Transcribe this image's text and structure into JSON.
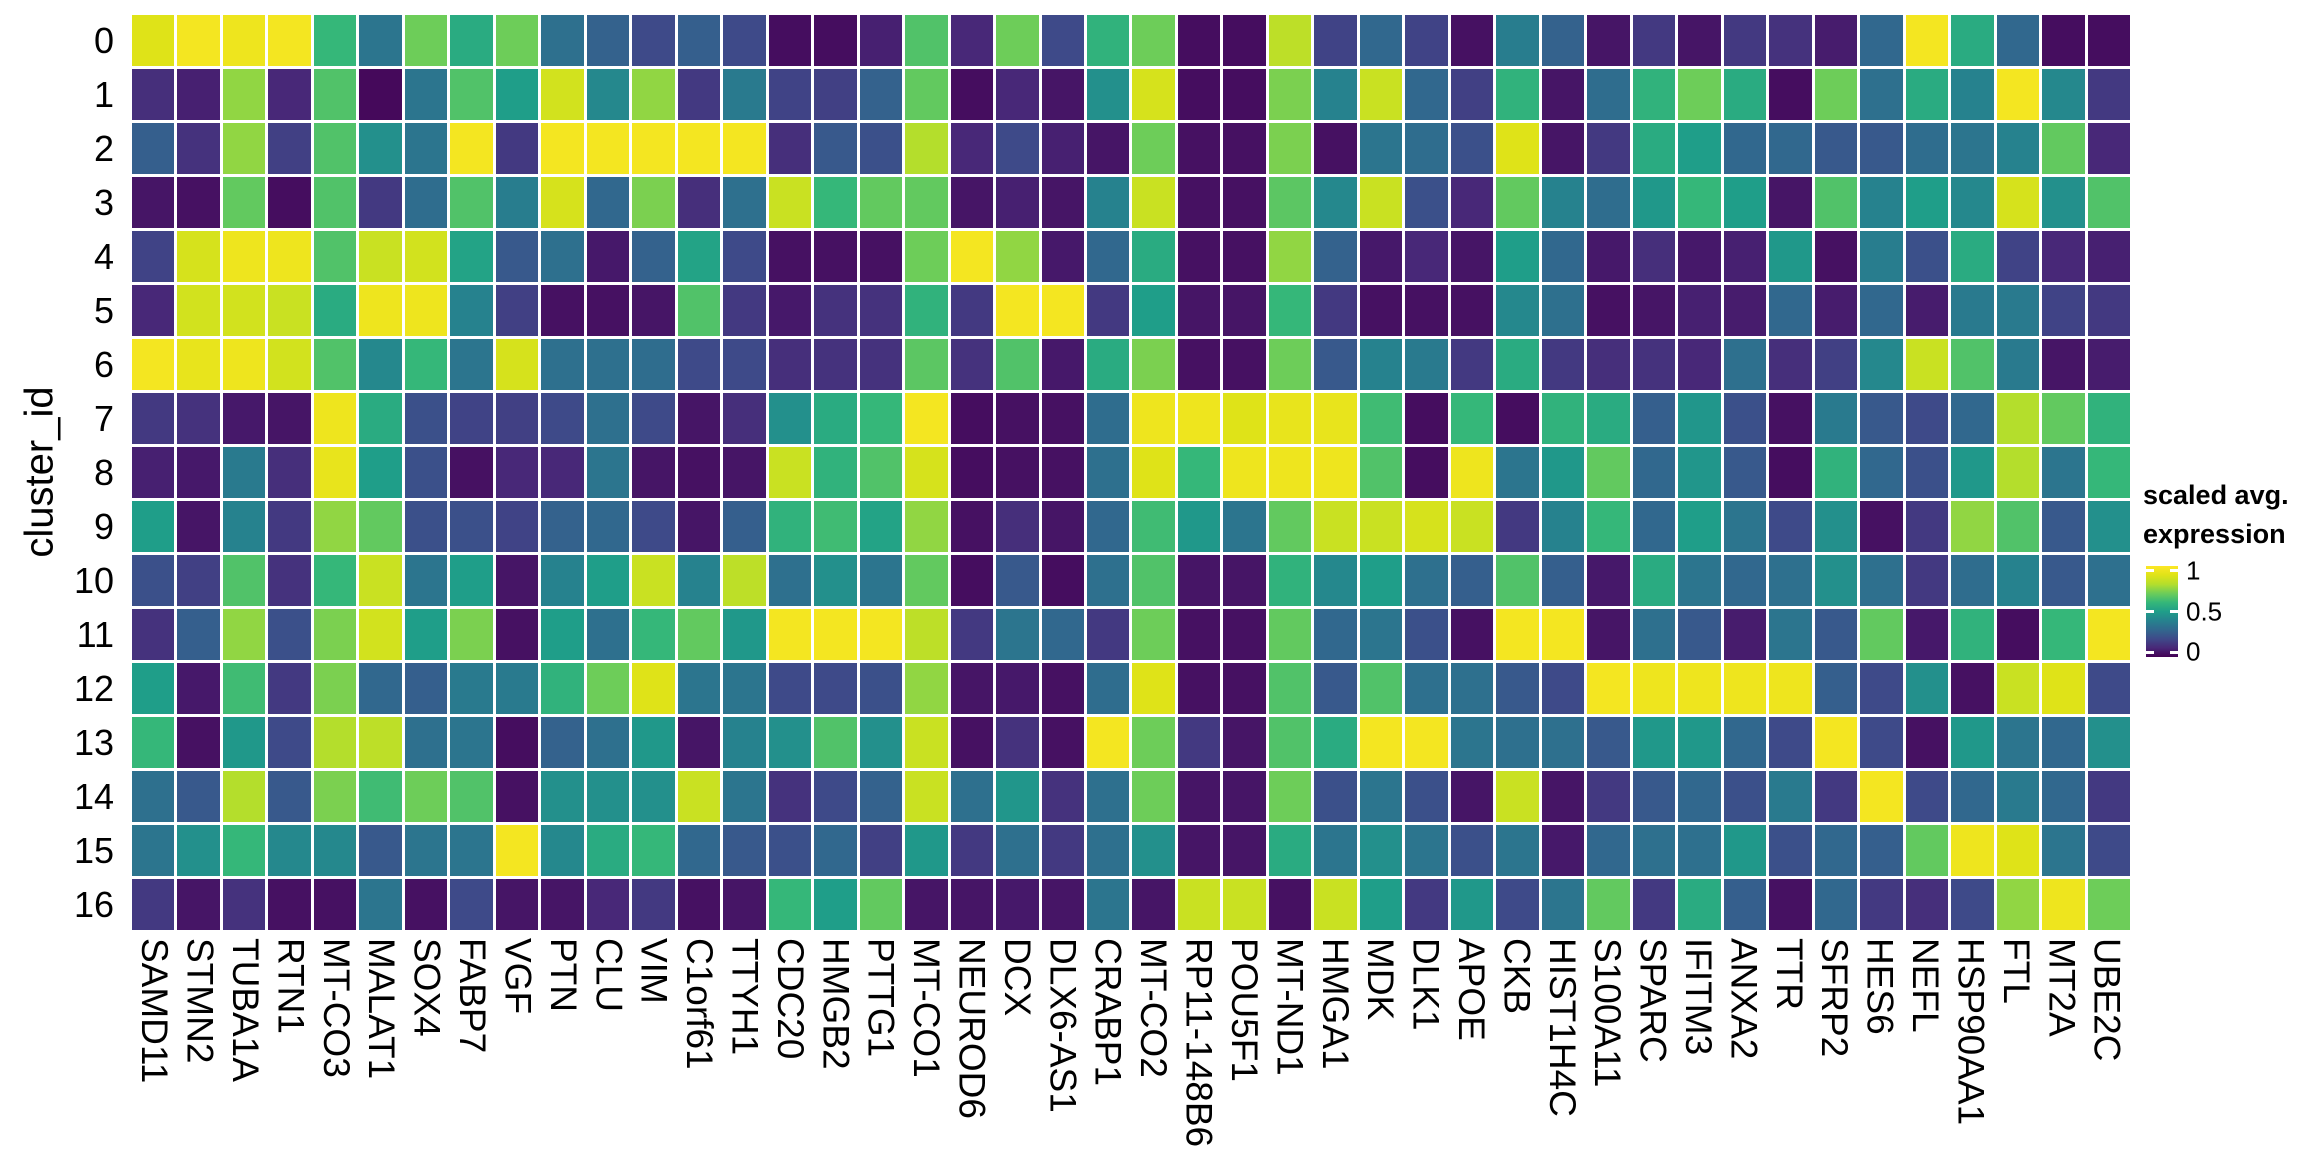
{
  "y_axis_title": "cluster_id",
  "legend": {
    "title_line1": "scaled avg.",
    "title_line2": "expression",
    "ticks": [
      {
        "label": "1",
        "value": 1.0
      },
      {
        "label": "0.5",
        "value": 0.5
      },
      {
        "label": "0",
        "value": 0.0
      }
    ]
  },
  "colors": {
    "background": "#ffffff",
    "grid_gap": "#ffffff",
    "viridis_stops": [
      {
        "t": 0.0,
        "hex": "#440154"
      },
      {
        "t": 0.1,
        "hex": "#482878"
      },
      {
        "t": 0.2,
        "hex": "#3e4a89"
      },
      {
        "t": 0.3,
        "hex": "#31688e"
      },
      {
        "t": 0.4,
        "hex": "#26828e"
      },
      {
        "t": 0.5,
        "hex": "#1f9e89"
      },
      {
        "t": 0.6,
        "hex": "#35b779"
      },
      {
        "t": 0.7,
        "hex": "#6dcd59"
      },
      {
        "t": 0.8,
        "hex": "#b4de2c"
      },
      {
        "t": 0.9,
        "hex": "#dfe318"
      },
      {
        "t": 1.0,
        "hex": "#fde725"
      }
    ]
  },
  "chart_data": {
    "type": "heatmap",
    "title": "",
    "xlabel": "",
    "ylabel": "cluster_id",
    "legend_title": "scaled avg. expression",
    "value_range": [
      0,
      1
    ],
    "colormap": "viridis",
    "x_categories": [
      "SAMD11",
      "STMN2",
      "TUBA1A",
      "RTN1",
      "MT-CO3",
      "MALAT1",
      "SOX4",
      "FABP7",
      "VGF",
      "PTN",
      "CLU",
      "VIM",
      "C1orf61",
      "TTYH1",
      "CDC20",
      "HMGB2",
      "PTTG1",
      "MT-CO1",
      "NEUROD6",
      "DCX",
      "DLX6-AS1",
      "CRABP1",
      "MT-CO2",
      "RP11-148B6",
      "POU5F1",
      "MT-ND1",
      "HMGA1",
      "MDK",
      "DLK1",
      "APOE",
      "CKB",
      "HIST1H4C",
      "S100A11",
      "SPARC",
      "IFITM3",
      "ANXA2",
      "TTR",
      "SFRP2",
      "HES6",
      "NEFL",
      "HSP90AA1",
      "FTL",
      "MT2A",
      "UBE2C"
    ],
    "y_categories": [
      "0",
      "1",
      "2",
      "3",
      "4",
      "5",
      "6",
      "7",
      "8",
      "9",
      "10",
      "11",
      "12",
      "13",
      "14",
      "15",
      "16"
    ],
    "values": [
      [
        0.9,
        0.97,
        0.95,
        0.97,
        0.6,
        0.35,
        0.7,
        0.55,
        0.7,
        0.33,
        0.28,
        0.2,
        0.27,
        0.2,
        0.03,
        0.03,
        0.08,
        0.65,
        0.1,
        0.7,
        0.2,
        0.58,
        0.7,
        0.03,
        0.03,
        0.82,
        0.18,
        0.3,
        0.18,
        0.04,
        0.38,
        0.28,
        0.05,
        0.15,
        0.05,
        0.15,
        0.13,
        0.07,
        0.3,
        0.97,
        0.55,
        0.3,
        0.03,
        0.03
      ],
      [
        0.12,
        0.08,
        0.75,
        0.1,
        0.65,
        0.02,
        0.35,
        0.65,
        0.5,
        0.87,
        0.42,
        0.75,
        0.15,
        0.37,
        0.18,
        0.17,
        0.28,
        0.68,
        0.03,
        0.1,
        0.05,
        0.45,
        0.88,
        0.03,
        0.03,
        0.72,
        0.4,
        0.85,
        0.3,
        0.17,
        0.58,
        0.05,
        0.32,
        0.58,
        0.7,
        0.55,
        0.03,
        0.7,
        0.33,
        0.55,
        0.4,
        0.97,
        0.42,
        0.15
      ],
      [
        0.27,
        0.13,
        0.75,
        0.17,
        0.65,
        0.45,
        0.35,
        0.97,
        0.15,
        0.97,
        0.97,
        0.97,
        0.97,
        0.97,
        0.12,
        0.25,
        0.22,
        0.8,
        0.1,
        0.2,
        0.08,
        0.05,
        0.7,
        0.04,
        0.04,
        0.72,
        0.04,
        0.35,
        0.32,
        0.22,
        0.9,
        0.05,
        0.15,
        0.55,
        0.5,
        0.3,
        0.3,
        0.25,
        0.25,
        0.32,
        0.35,
        0.4,
        0.68,
        0.1
      ],
      [
        0.05,
        0.04,
        0.68,
        0.03,
        0.65,
        0.15,
        0.32,
        0.65,
        0.38,
        0.88,
        0.3,
        0.72,
        0.12,
        0.33,
        0.85,
        0.6,
        0.68,
        0.68,
        0.05,
        0.08,
        0.05,
        0.4,
        0.85,
        0.04,
        0.04,
        0.67,
        0.42,
        0.85,
        0.22,
        0.1,
        0.68,
        0.4,
        0.32,
        0.48,
        0.6,
        0.5,
        0.05,
        0.65,
        0.4,
        0.5,
        0.42,
        0.88,
        0.45,
        0.65
      ],
      [
        0.18,
        0.88,
        0.95,
        0.95,
        0.65,
        0.85,
        0.87,
        0.52,
        0.25,
        0.33,
        0.06,
        0.28,
        0.52,
        0.2,
        0.04,
        0.04,
        0.04,
        0.7,
        0.97,
        0.75,
        0.06,
        0.3,
        0.55,
        0.04,
        0.04,
        0.75,
        0.28,
        0.06,
        0.1,
        0.05,
        0.5,
        0.3,
        0.06,
        0.12,
        0.06,
        0.08,
        0.48,
        0.04,
        0.38,
        0.22,
        0.55,
        0.18,
        0.1,
        0.08
      ],
      [
        0.1,
        0.87,
        0.87,
        0.85,
        0.55,
        0.95,
        0.95,
        0.4,
        0.17,
        0.04,
        0.04,
        0.05,
        0.65,
        0.15,
        0.06,
        0.13,
        0.13,
        0.58,
        0.15,
        0.97,
        0.97,
        0.15,
        0.5,
        0.05,
        0.05,
        0.6,
        0.15,
        0.04,
        0.04,
        0.04,
        0.42,
        0.33,
        0.04,
        0.05,
        0.08,
        0.07,
        0.3,
        0.07,
        0.3,
        0.07,
        0.37,
        0.37,
        0.18,
        0.15
      ],
      [
        0.97,
        0.93,
        0.95,
        0.87,
        0.65,
        0.42,
        0.6,
        0.35,
        0.88,
        0.33,
        0.33,
        0.32,
        0.2,
        0.2,
        0.12,
        0.13,
        0.13,
        0.67,
        0.13,
        0.65,
        0.06,
        0.55,
        0.72,
        0.04,
        0.04,
        0.7,
        0.25,
        0.4,
        0.37,
        0.15,
        0.55,
        0.15,
        0.12,
        0.13,
        0.1,
        0.33,
        0.12,
        0.17,
        0.42,
        0.85,
        0.65,
        0.37,
        0.05,
        0.07
      ],
      [
        0.15,
        0.13,
        0.06,
        0.05,
        0.95,
        0.55,
        0.22,
        0.18,
        0.17,
        0.2,
        0.33,
        0.2,
        0.05,
        0.12,
        0.45,
        0.55,
        0.6,
        0.97,
        0.03,
        0.04,
        0.04,
        0.32,
        0.95,
        0.95,
        0.9,
        0.93,
        0.93,
        0.62,
        0.03,
        0.6,
        0.03,
        0.58,
        0.55,
        0.27,
        0.47,
        0.22,
        0.04,
        0.37,
        0.25,
        0.2,
        0.3,
        0.8,
        0.68,
        0.58
      ],
      [
        0.08,
        0.06,
        0.37,
        0.12,
        0.93,
        0.5,
        0.22,
        0.04,
        0.1,
        0.1,
        0.35,
        0.05,
        0.04,
        0.05,
        0.85,
        0.58,
        0.65,
        0.88,
        0.03,
        0.04,
        0.04,
        0.33,
        0.9,
        0.6,
        0.95,
        0.95,
        0.95,
        0.65,
        0.03,
        0.95,
        0.35,
        0.48,
        0.68,
        0.3,
        0.47,
        0.25,
        0.03,
        0.58,
        0.3,
        0.22,
        0.48,
        0.8,
        0.35,
        0.6
      ],
      [
        0.5,
        0.05,
        0.4,
        0.15,
        0.75,
        0.68,
        0.22,
        0.22,
        0.18,
        0.28,
        0.3,
        0.2,
        0.05,
        0.27,
        0.58,
        0.62,
        0.52,
        0.75,
        0.04,
        0.12,
        0.05,
        0.3,
        0.62,
        0.48,
        0.35,
        0.68,
        0.85,
        0.85,
        0.88,
        0.85,
        0.15,
        0.4,
        0.6,
        0.3,
        0.5,
        0.35,
        0.2,
        0.45,
        0.04,
        0.15,
        0.75,
        0.65,
        0.25,
        0.45
      ],
      [
        0.22,
        0.17,
        0.65,
        0.13,
        0.6,
        0.85,
        0.35,
        0.5,
        0.05,
        0.4,
        0.5,
        0.85,
        0.4,
        0.82,
        0.33,
        0.45,
        0.35,
        0.68,
        0.03,
        0.25,
        0.03,
        0.33,
        0.65,
        0.05,
        0.05,
        0.58,
        0.42,
        0.5,
        0.33,
        0.27,
        0.65,
        0.27,
        0.06,
        0.55,
        0.35,
        0.3,
        0.33,
        0.45,
        0.33,
        0.15,
        0.32,
        0.4,
        0.25,
        0.33
      ],
      [
        0.13,
        0.27,
        0.75,
        0.22,
        0.72,
        0.87,
        0.5,
        0.72,
        0.04,
        0.5,
        0.33,
        0.6,
        0.68,
        0.48,
        0.97,
        0.97,
        0.97,
        0.82,
        0.15,
        0.35,
        0.3,
        0.15,
        0.7,
        0.04,
        0.04,
        0.68,
        0.3,
        0.35,
        0.22,
        0.04,
        0.97,
        0.97,
        0.05,
        0.33,
        0.25,
        0.07,
        0.35,
        0.25,
        0.68,
        0.06,
        0.58,
        0.03,
        0.6,
        0.97
      ],
      [
        0.5,
        0.06,
        0.62,
        0.15,
        0.72,
        0.3,
        0.27,
        0.37,
        0.37,
        0.58,
        0.7,
        0.9,
        0.35,
        0.35,
        0.2,
        0.2,
        0.22,
        0.75,
        0.05,
        0.06,
        0.04,
        0.32,
        0.9,
        0.04,
        0.04,
        0.65,
        0.25,
        0.65,
        0.33,
        0.33,
        0.25,
        0.2,
        0.97,
        0.95,
        0.95,
        0.95,
        0.95,
        0.27,
        0.2,
        0.45,
        0.04,
        0.85,
        0.9,
        0.2
      ],
      [
        0.6,
        0.04,
        0.48,
        0.2,
        0.8,
        0.82,
        0.33,
        0.35,
        0.03,
        0.28,
        0.33,
        0.48,
        0.05,
        0.4,
        0.45,
        0.65,
        0.45,
        0.85,
        0.04,
        0.13,
        0.04,
        0.97,
        0.7,
        0.15,
        0.05,
        0.65,
        0.55,
        0.97,
        0.97,
        0.35,
        0.33,
        0.33,
        0.25,
        0.48,
        0.48,
        0.3,
        0.2,
        0.97,
        0.2,
        0.04,
        0.48,
        0.35,
        0.3,
        0.45
      ],
      [
        0.33,
        0.25,
        0.8,
        0.25,
        0.72,
        0.62,
        0.7,
        0.65,
        0.04,
        0.45,
        0.45,
        0.45,
        0.85,
        0.35,
        0.13,
        0.2,
        0.28,
        0.85,
        0.33,
        0.47,
        0.13,
        0.33,
        0.7,
        0.05,
        0.05,
        0.7,
        0.22,
        0.35,
        0.22,
        0.05,
        0.85,
        0.05,
        0.15,
        0.25,
        0.3,
        0.22,
        0.37,
        0.15,
        0.97,
        0.2,
        0.3,
        0.37,
        0.3,
        0.15
      ],
      [
        0.35,
        0.45,
        0.6,
        0.42,
        0.42,
        0.25,
        0.35,
        0.35,
        0.97,
        0.42,
        0.55,
        0.6,
        0.3,
        0.25,
        0.22,
        0.3,
        0.17,
        0.48,
        0.15,
        0.33,
        0.15,
        0.33,
        0.45,
        0.05,
        0.05,
        0.55,
        0.35,
        0.45,
        0.35,
        0.22,
        0.35,
        0.06,
        0.3,
        0.33,
        0.33,
        0.48,
        0.22,
        0.3,
        0.27,
        0.68,
        0.95,
        0.9,
        0.35,
        0.2
      ],
      [
        0.15,
        0.05,
        0.13,
        0.04,
        0.04,
        0.35,
        0.04,
        0.2,
        0.05,
        0.05,
        0.1,
        0.15,
        0.04,
        0.05,
        0.6,
        0.5,
        0.68,
        0.05,
        0.05,
        0.06,
        0.05,
        0.35,
        0.05,
        0.85,
        0.85,
        0.04,
        0.85,
        0.5,
        0.15,
        0.48,
        0.2,
        0.35,
        0.68,
        0.15,
        0.55,
        0.27,
        0.04,
        0.3,
        0.15,
        0.12,
        0.2,
        0.75,
        0.95,
        0.7
      ]
    ],
    "layout": {
      "legend_position": "right",
      "x_tick_rotation_deg": 90,
      "grid": false
    }
  }
}
